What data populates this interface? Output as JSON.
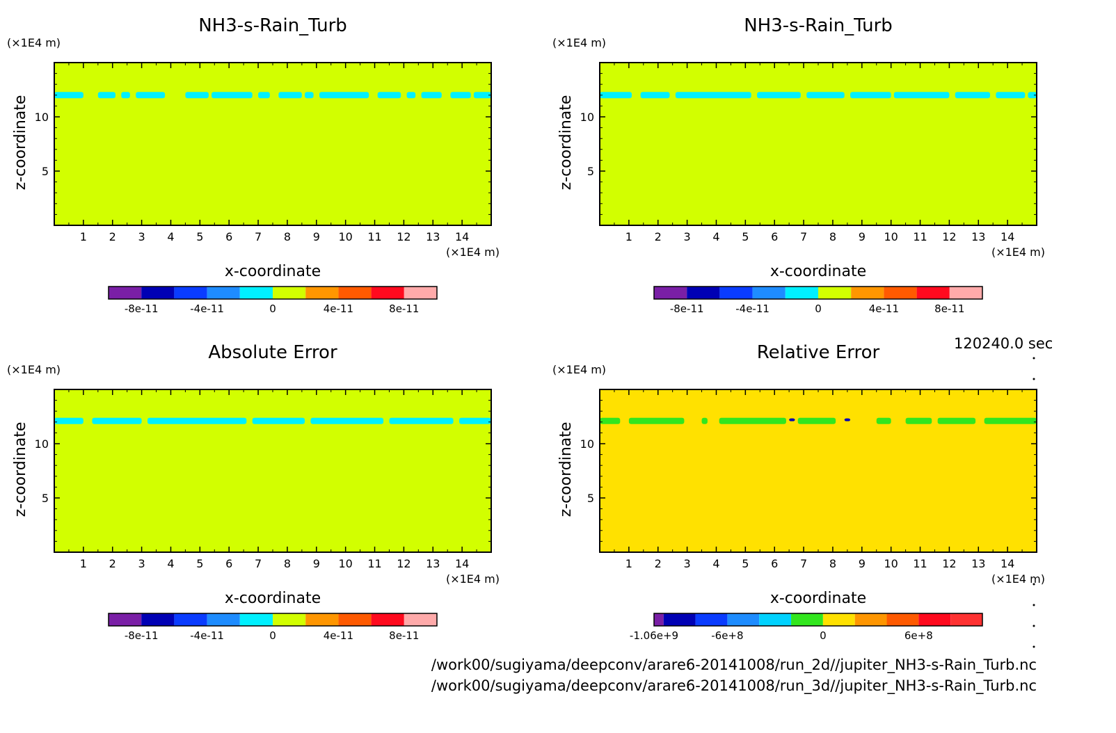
{
  "palettes": {
    "field": [
      "#7a1fa6",
      "#0000b4",
      "#0a3cff",
      "#1e8cff",
      "#00f0ff",
      "#d2ff00",
      "#ff9600",
      "#ff5a00",
      "#ff0a1e",
      "#ffaaaa"
    ],
    "relative": [
      "#7a1fa6",
      "#0000b4",
      "#0a3cff",
      "#1e8cff",
      "#00d2ff",
      "#32e61e",
      "#ffe100",
      "#ff9600",
      "#ff5a00",
      "#ff0a1e",
      "#ff3232"
    ]
  },
  "time_label": "120240.0 sec",
  "footer": {
    "file_2d": "/work00/sugiyama/deepconv/arare6-20141008/run_2d//jupiter_NH3-s-Rain_Turb.nc",
    "file_3d": "/work00/sugiyama/deepconv/arare6-20141008/run_3d//jupiter_NH3-s-Rain_Turb.nc"
  },
  "chart_data": [
    {
      "type": "heatmap",
      "title": "NH3-s-Rain_Turb",
      "xlabel": "x-coordinate",
      "ylabel": "z-coordinate",
      "x_unit": "(×1E4 m)",
      "y_unit": "(×1E4 m)",
      "xlim": [
        0,
        15
      ],
      "ylim": [
        0,
        15
      ],
      "x_ticks": [
        1,
        2,
        3,
        4,
        5,
        6,
        7,
        8,
        9,
        10,
        11,
        12,
        13,
        14
      ],
      "y_ticks": [
        5,
        10
      ],
      "background_level": 5,
      "features": [
        {
          "level": 4,
          "z": 12.0,
          "x_ranges": [
            [
              0,
              1.0
            ],
            [
              1.5,
              2.1
            ],
            [
              2.3,
              2.6
            ],
            [
              2.8,
              3.8
            ],
            [
              4.5,
              5.3
            ],
            [
              5.4,
              6.8
            ],
            [
              7.0,
              7.4
            ],
            [
              7.7,
              8.5
            ],
            [
              8.6,
              8.9
            ],
            [
              9.1,
              10.8
            ],
            [
              11.1,
              11.9
            ],
            [
              12.1,
              12.4
            ],
            [
              12.6,
              13.3
            ],
            [
              13.6,
              14.3
            ],
            [
              14.4,
              15.0
            ]
          ]
        }
      ],
      "colorbar": {
        "labels": [
          "-8e-11",
          "-4e-11",
          "0",
          "4e-11",
          "8e-11"
        ],
        "levels": [
          -1e-10,
          -8e-11,
          -6e-11,
          -4e-11,
          -2e-11,
          0,
          2e-11,
          4e-11,
          6e-11,
          8e-11,
          1e-10
        ]
      }
    },
    {
      "type": "heatmap",
      "title": "NH3-s-Rain_Turb",
      "xlabel": "x-coordinate",
      "ylabel": "z-coordinate",
      "x_unit": "(×1E4 m)",
      "y_unit": "(×1E4 m)",
      "xlim": [
        0,
        15
      ],
      "ylim": [
        0,
        15
      ],
      "x_ticks": [
        1,
        2,
        3,
        4,
        5,
        6,
        7,
        8,
        9,
        10,
        11,
        12,
        13,
        14
      ],
      "y_ticks": [
        5,
        10
      ],
      "background_level": 5,
      "features": [
        {
          "level": 4,
          "z": 12.0,
          "x_ranges": [
            [
              0,
              1.1
            ],
            [
              1.4,
              2.4
            ],
            [
              2.6,
              5.2
            ],
            [
              5.4,
              6.9
            ],
            [
              7.1,
              8.4
            ],
            [
              8.6,
              10.0
            ],
            [
              10.1,
              12.0
            ],
            [
              12.2,
              13.4
            ],
            [
              13.6,
              14.6
            ],
            [
              14.7,
              15.0
            ]
          ]
        }
      ],
      "colorbar": {
        "labels": [
          "-8e-11",
          "-4e-11",
          "0",
          "4e-11",
          "8e-11"
        ],
        "levels": [
          -1e-10,
          -8e-11,
          -6e-11,
          -4e-11,
          -2e-11,
          0,
          2e-11,
          4e-11,
          6e-11,
          8e-11,
          1e-10
        ]
      }
    },
    {
      "type": "heatmap",
      "title": "Absolute Error",
      "xlabel": "x-coordinate",
      "ylabel": "z-coordinate",
      "x_unit": "(×1E4 m)",
      "y_unit": "(×1E4 m)",
      "xlim": [
        0,
        15
      ],
      "ylim": [
        0,
        15
      ],
      "x_ticks": [
        1,
        2,
        3,
        4,
        5,
        6,
        7,
        8,
        9,
        10,
        11,
        12,
        13,
        14
      ],
      "y_ticks": [
        5,
        10
      ],
      "background_level": 5,
      "features": [
        {
          "level": 4,
          "z": 12.1,
          "x_ranges": [
            [
              0,
              1.0
            ],
            [
              1.3,
              3.0
            ],
            [
              3.2,
              6.6
            ],
            [
              6.8,
              8.6
            ],
            [
              8.8,
              11.3
            ],
            [
              11.5,
              13.7
            ],
            [
              13.9,
              15.0
            ]
          ]
        }
      ],
      "colorbar": {
        "labels": [
          "-8e-11",
          "-4e-11",
          "0",
          "4e-11",
          "8e-11"
        ],
        "levels": [
          -1e-10,
          -8e-11,
          -6e-11,
          -4e-11,
          -2e-11,
          0,
          2e-11,
          4e-11,
          6e-11,
          8e-11,
          1e-10
        ]
      }
    },
    {
      "type": "heatmap",
      "title": "Relative Error",
      "xlabel": "x-coordinate",
      "ylabel": "z-coordinate",
      "x_unit": "(×1E4 m)",
      "y_unit": "(×1E4 m)",
      "xlim": [
        0,
        15
      ],
      "ylim": [
        0,
        15
      ],
      "x_ticks": [
        1,
        2,
        3,
        4,
        5,
        6,
        7,
        8,
        9,
        10,
        11,
        12,
        13,
        14
      ],
      "y_ticks": [
        5,
        10
      ],
      "background_level": 6,
      "features": [
        {
          "level": 5,
          "z": 12.1,
          "x_ranges": [
            [
              0,
              0.7
            ],
            [
              1.0,
              2.9
            ],
            [
              3.5,
              3.7
            ],
            [
              4.1,
              6.4
            ],
            [
              6.8,
              8.1
            ],
            [
              9.5,
              10.0
            ],
            [
              10.5,
              11.4
            ],
            [
              11.6,
              12.9
            ],
            [
              13.2,
              15.0
            ]
          ]
        },
        {
          "level": 1,
          "z": 12.2,
          "x_ranges": [
            [
              6.5,
              6.7
            ],
            [
              8.4,
              8.6
            ]
          ]
        }
      ],
      "colorbar": {
        "labels": [
          "-1.06e+9",
          "-6e+8",
          "0",
          "6e+8"
        ],
        "levels": [
          -1060000000.0,
          -1000000000.0,
          -800000000.0,
          -600000000.0,
          -400000000.0,
          -200000000.0,
          0,
          200000000.0,
          400000000.0,
          600000000.0,
          800000000.0,
          1000000000.0
        ]
      }
    }
  ]
}
